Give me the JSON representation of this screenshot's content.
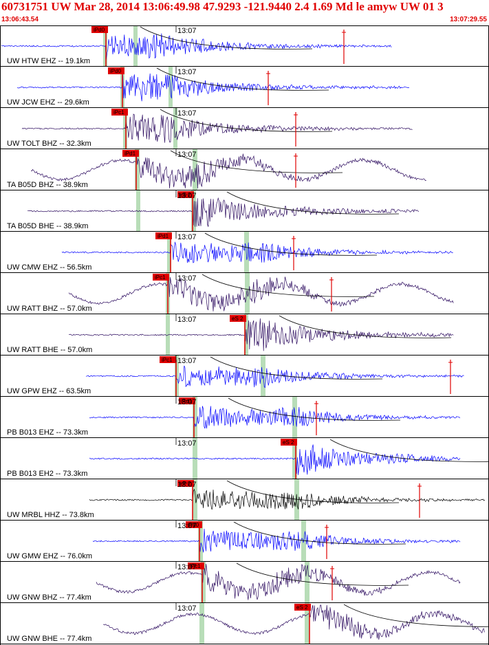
{
  "header": {
    "title": "60731751 UW Mar 28, 2014 13:06:49.98   47.9293 -121.9440  2.4 1.69 Md le amyw UW 01   3",
    "start_time": "13:06:43.54",
    "end_time": "13:07:29.55"
  },
  "marker_label": "13:07",
  "colors": {
    "header": "#e00000",
    "pick_box": "#e00000",
    "window": "#b8ddb8",
    "trace_blue": "#0000ff",
    "trace_purple": "#2b0a5e",
    "trace_black": "#000000"
  },
  "traces": [
    {
      "label": "UW HTW EHZ -- 19.1km",
      "pick": "iPd0",
      "color": "trace_blue",
      "shape": "local",
      "env": "near"
    },
    {
      "label": "UW JCW EHZ -- 29.6km",
      "pick": "iPd0",
      "color": "trace_blue",
      "shape": "local",
      "env": "near"
    },
    {
      "label": "UW TOLT BHZ -- 32.3km",
      "pick": "iPc1",
      "color": "trace_purple",
      "shape": "local",
      "env": "near"
    },
    {
      "label": "TA B05D BHZ -- 38.9km",
      "pick": "iPd1",
      "color": "trace_purple",
      "shape": "wave",
      "env": "mid"
    },
    {
      "label": "TA B05D BHE -- 38.9km",
      "pick": "eS 2",
      "color": "trace_purple",
      "shape": "local",
      "env": "mid"
    },
    {
      "label": "UW CMW EHZ -- 56.5km",
      "pick": "iPd1",
      "color": "trace_blue",
      "shape": "local",
      "env": "late"
    },
    {
      "label": "UW RATT BHZ -- 57.0km",
      "pick": "iPc1",
      "color": "trace_purple",
      "shape": "wave",
      "env": "late"
    },
    {
      "label": "UW RATT BHE -- 57.0km",
      "pick": "eS 2",
      "color": "trace_purple",
      "shape": "local",
      "env": "late"
    },
    {
      "label": "UW GPW EHZ -- 63.5km",
      "pick": "iPc1",
      "color": "trace_blue",
      "shape": "local",
      "env": "late"
    },
    {
      "label": "PB B013 EHZ -- 73.3km",
      "pick": "iPd1",
      "color": "trace_blue",
      "shape": "local",
      "env": "far"
    },
    {
      "label": "PB B013 EH2 -- 73.3km",
      "pick": "eS 2",
      "color": "trace_blue",
      "shape": "local",
      "env": "far"
    },
    {
      "label": "UW MRBL HHZ -- 73.8km",
      "pick": "eP 2",
      "color": "trace_black",
      "shape": "local",
      "env": "far"
    },
    {
      "label": "UW GMW EHZ -- 76.0km",
      "pick": "iPd0",
      "color": "trace_blue",
      "shape": "local",
      "env": "far"
    },
    {
      "label": "UW GNW BHZ -- 77.4km",
      "pick": "iPc1",
      "color": "trace_purple",
      "shape": "wave",
      "env": "far"
    },
    {
      "label": "UW GNW BHE -- 77.4km",
      "pick": "eS 2",
      "color": "trace_purple",
      "shape": "wave",
      "env": "far"
    }
  ]
}
